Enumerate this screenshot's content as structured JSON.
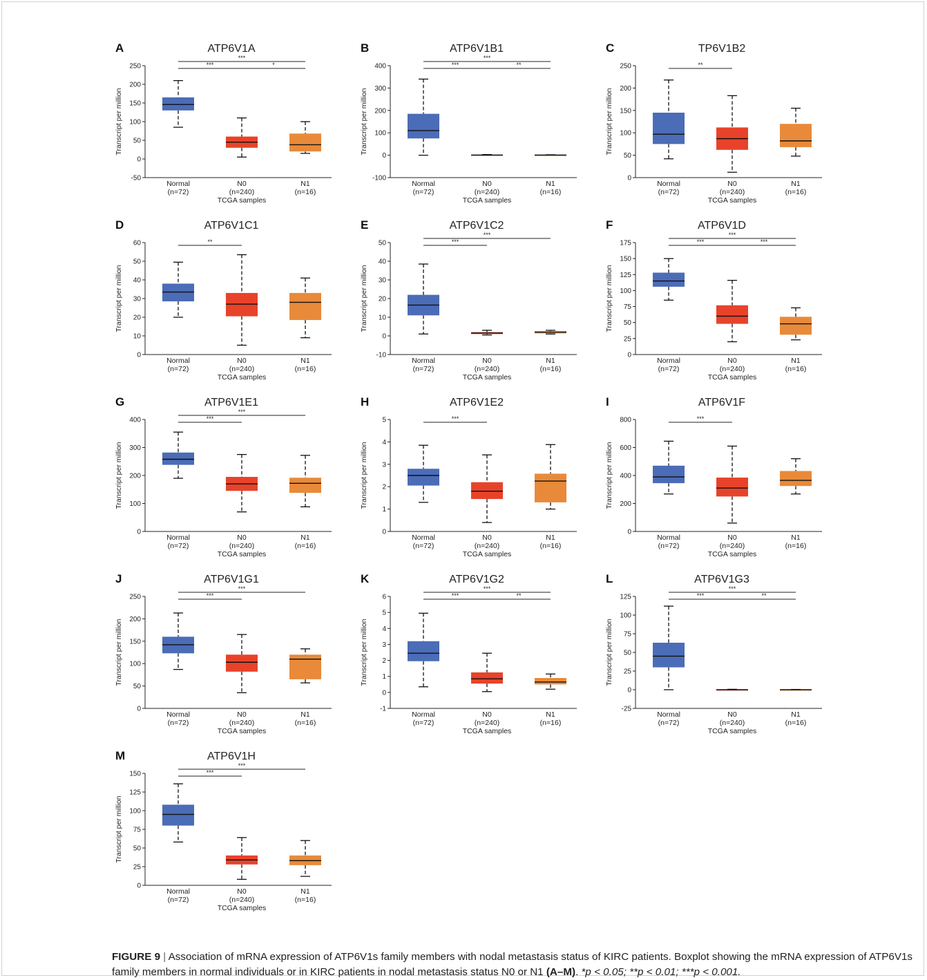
{
  "figure": {
    "caption": {
      "label": "FIGURE 9",
      "separator": "|",
      "text": "Association of mRNA expression of ATP6V1s family members with nodal metastasis status of KIRC patients. Boxplot showing the mRNA expression of ATP6V1s family members in normal individuals or in KIRC patients in nodal metastasis status N0 or N1",
      "panel_ref": "(A–M)",
      "sig_1": "*p < 0.05;",
      "sig_2": "**p < 0.01;",
      "sig_3": "***p < 0.001."
    }
  },
  "colors": {
    "Normal": "#4b6cb7",
    "N0": "#e8432a",
    "N1": "#e88a3a"
  },
  "chart_data": [
    {
      "type": "box",
      "panel": "A",
      "title": "ATP6V1A",
      "ylabel": "Transcript per million",
      "xlabel": "TCGA samples",
      "categories": [
        "Normal",
        "N0",
        "N1"
      ],
      "category_n": [
        "(n=72)",
        "(n=240)",
        "(n=16)"
      ],
      "ylim": [
        -50,
        250
      ],
      "yticks": [
        -50,
        0,
        50,
        100,
        150,
        200,
        250
      ],
      "boxes": [
        {
          "min": 85,
          "q1": 130,
          "median": 146,
          "q3": 165,
          "max": 210
        },
        {
          "min": 5,
          "q1": 30,
          "median": 45,
          "q3": 60,
          "max": 110
        },
        {
          "min": 15,
          "q1": 20,
          "median": 38,
          "q3": 68,
          "max": 100
        }
      ],
      "significance": [
        {
          "from": 0,
          "to": 1,
          "label": "***"
        },
        {
          "from": 0,
          "to": 2,
          "label": "***"
        },
        {
          "from": 1,
          "to": 2,
          "label": "*"
        }
      ]
    },
    {
      "type": "box",
      "panel": "B",
      "title": "ATP6V1B1",
      "ylabel": "Transcript per million",
      "xlabel": "TCGA samples",
      "categories": [
        "Normal",
        "N0",
        "N1"
      ],
      "category_n": [
        "(n=72)",
        "(n=240)",
        "(n=16)"
      ],
      "ylim": [
        -100,
        400
      ],
      "yticks": [
        -100,
        0,
        100,
        200,
        300,
        400
      ],
      "boxes": [
        {
          "min": 0,
          "q1": 75,
          "median": 110,
          "q3": 185,
          "max": 340
        },
        {
          "min": 0,
          "q1": 0,
          "median": 1,
          "q3": 2,
          "max": 3
        },
        {
          "min": 0,
          "q1": 0,
          "median": 1,
          "q3": 1,
          "max": 2
        }
      ],
      "significance": [
        {
          "from": 0,
          "to": 1,
          "label": "***"
        },
        {
          "from": 0,
          "to": 2,
          "label": "***"
        },
        {
          "from": 1,
          "to": 2,
          "label": "**"
        }
      ]
    },
    {
      "type": "box",
      "panel": "C",
      "title": "TP6V1B2",
      "ylabel": "Transcript per million",
      "xlabel": "TCGA samples",
      "categories": [
        "Normal",
        "N0",
        "N1"
      ],
      "category_n": [
        "(n=72)",
        "(n=240)",
        "(n=16)"
      ],
      "ylim": [
        0,
        250
      ],
      "yticks": [
        0,
        50,
        100,
        150,
        200,
        250
      ],
      "boxes": [
        {
          "min": 42,
          "q1": 75,
          "median": 97,
          "q3": 145,
          "max": 218
        },
        {
          "min": 12,
          "q1": 62,
          "median": 87,
          "q3": 112,
          "max": 183
        },
        {
          "min": 48,
          "q1": 68,
          "median": 82,
          "q3": 120,
          "max": 155
        }
      ],
      "significance": [
        {
          "from": 0,
          "to": 1,
          "label": "**"
        }
      ]
    },
    {
      "type": "box",
      "panel": "D",
      "title": "ATP6V1C1",
      "ylabel": "Transcript per million",
      "xlabel": "TCGA samples",
      "categories": [
        "Normal",
        "N0",
        "N1"
      ],
      "category_n": [
        "(n=72)",
        "(n=240)",
        "(n=16)"
      ],
      "ylim": [
        0,
        60
      ],
      "yticks": [
        0,
        10,
        20,
        30,
        40,
        50,
        60
      ],
      "boxes": [
        {
          "min": 20,
          "q1": 28.5,
          "median": 33.5,
          "q3": 38,
          "max": 49.5
        },
        {
          "min": 5,
          "q1": 20.5,
          "median": 27,
          "q3": 33,
          "max": 53.5
        },
        {
          "min": 9,
          "q1": 18.5,
          "median": 28,
          "q3": 33,
          "max": 41
        }
      ],
      "significance": [
        {
          "from": 0,
          "to": 1,
          "label": "**"
        }
      ]
    },
    {
      "type": "box",
      "panel": "E",
      "title": "ATP6V1C2",
      "ylabel": "Transcript per million",
      "xlabel": "TCGA samples",
      "categories": [
        "Normal",
        "N0",
        "N1"
      ],
      "category_n": [
        "(n=72)",
        "(n=240)",
        "(n=16)"
      ],
      "ylim": [
        -10,
        50
      ],
      "yticks": [
        -10,
        0,
        10,
        20,
        30,
        40,
        50
      ],
      "boxes": [
        {
          "min": 1,
          "q1": 11,
          "median": 16.5,
          "q3": 22,
          "max": 38.5
        },
        {
          "min": 0.5,
          "q1": 1,
          "median": 1.5,
          "q3": 2,
          "max": 3
        },
        {
          "min": 1,
          "q1": 1.3,
          "median": 2,
          "q3": 2.5,
          "max": 3
        }
      ],
      "significance": [
        {
          "from": 0,
          "to": 1,
          "label": "***"
        },
        {
          "from": 0,
          "to": 2,
          "label": "***"
        }
      ]
    },
    {
      "type": "box",
      "panel": "F",
      "title": "ATP6V1D",
      "ylabel": "Transcript per million",
      "xlabel": "TCGA samples",
      "categories": [
        "Normal",
        "N0",
        "N1"
      ],
      "category_n": [
        "(n=72)",
        "(n=240)",
        "(n=16)"
      ],
      "ylim": [
        0,
        175
      ],
      "yticks": [
        0,
        25,
        50,
        75,
        100,
        125,
        150,
        175
      ],
      "boxes": [
        {
          "min": 85,
          "q1": 106,
          "median": 115,
          "q3": 128,
          "max": 150
        },
        {
          "min": 20,
          "q1": 48,
          "median": 60,
          "q3": 77,
          "max": 116
        },
        {
          "min": 23,
          "q1": 31,
          "median": 48,
          "q3": 59,
          "max": 73
        }
      ],
      "significance": [
        {
          "from": 0,
          "to": 1,
          "label": "***"
        },
        {
          "from": 0,
          "to": 2,
          "label": "***"
        },
        {
          "from": 1,
          "to": 2,
          "label": "***"
        }
      ]
    },
    {
      "type": "box",
      "panel": "G",
      "title": "ATP6V1E1",
      "ylabel": "Transcript per million",
      "xlabel": "TCGA samples",
      "categories": [
        "Normal",
        "N0",
        "N1"
      ],
      "category_n": [
        "(n=72)",
        "(n=240)",
        "(n=16)"
      ],
      "ylim": [
        0,
        400
      ],
      "yticks": [
        0,
        100,
        200,
        300,
        400
      ],
      "boxes": [
        {
          "min": 190,
          "q1": 238,
          "median": 258,
          "q3": 282,
          "max": 355
        },
        {
          "min": 70,
          "q1": 145,
          "median": 170,
          "q3": 195,
          "max": 275
        },
        {
          "min": 88,
          "q1": 138,
          "median": 172,
          "q3": 192,
          "max": 272
        }
      ],
      "significance": [
        {
          "from": 0,
          "to": 1,
          "label": "***"
        },
        {
          "from": 0,
          "to": 2,
          "label": "***"
        }
      ]
    },
    {
      "type": "box",
      "panel": "H",
      "title": "ATP6V1E2",
      "ylabel": "Transcript per million",
      "xlabel": "TCGA samples",
      "categories": [
        "Normal",
        "N0",
        "N1"
      ],
      "category_n": [
        "(n=72)",
        "(n=240)",
        "(n=16)"
      ],
      "ylim": [
        0,
        5
      ],
      "yticks": [
        0,
        1,
        2,
        3,
        4,
        5
      ],
      "boxes": [
        {
          "min": 1.3,
          "q1": 2.05,
          "median": 2.5,
          "q3": 2.8,
          "max": 3.85
        },
        {
          "min": 0.4,
          "q1": 1.45,
          "median": 1.8,
          "q3": 2.2,
          "max": 3.42
        },
        {
          "min": 1,
          "q1": 1.3,
          "median": 2.25,
          "q3": 2.58,
          "max": 3.88
        }
      ],
      "significance": [
        {
          "from": 0,
          "to": 1,
          "label": "***"
        }
      ]
    },
    {
      "type": "box",
      "panel": "I",
      "title": "ATP6V1F",
      "ylabel": "Transcript per million",
      "xlabel": "TCGA samples",
      "categories": [
        "Normal",
        "N0",
        "N1"
      ],
      "category_n": [
        "(n=72)",
        "(n=240)",
        "(n=16)"
      ],
      "ylim": [
        0,
        800
      ],
      "yticks": [
        0,
        200,
        400,
        600,
        800
      ],
      "boxes": [
        {
          "min": 268,
          "q1": 345,
          "median": 390,
          "q3": 470,
          "max": 645
        },
        {
          "min": 60,
          "q1": 250,
          "median": 310,
          "q3": 385,
          "max": 610
        },
        {
          "min": 268,
          "q1": 325,
          "median": 365,
          "q3": 432,
          "max": 520
        }
      ],
      "significance": [
        {
          "from": 0,
          "to": 1,
          "label": "***"
        }
      ]
    },
    {
      "type": "box",
      "panel": "J",
      "title": "ATP6V1G1",
      "ylabel": "Transcript per million",
      "xlabel": "TCGA samples",
      "categories": [
        "Normal",
        "N0",
        "N1"
      ],
      "category_n": [
        "(n=72)",
        "(n=240)",
        "(n=16)"
      ],
      "ylim": [
        0,
        250
      ],
      "yticks": [
        0,
        50,
        100,
        150,
        200,
        250
      ],
      "boxes": [
        {
          "min": 87,
          "q1": 123,
          "median": 142,
          "q3": 160,
          "max": 213
        },
        {
          "min": 35,
          "q1": 82,
          "median": 103,
          "q3": 120,
          "max": 165
        },
        {
          "min": 57,
          "q1": 65,
          "median": 110,
          "q3": 120,
          "max": 133
        }
      ],
      "significance": [
        {
          "from": 0,
          "to": 1,
          "label": "***"
        },
        {
          "from": 0,
          "to": 2,
          "label": "***"
        }
      ]
    },
    {
      "type": "box",
      "panel": "K",
      "title": "ATP6V1G2",
      "ylabel": "Transcript per million",
      "xlabel": "TCGA samples",
      "categories": [
        "Normal",
        "N0",
        "N1"
      ],
      "category_n": [
        "(n=72)",
        "(n=240)",
        "(n=16)"
      ],
      "ylim": [
        -1,
        6
      ],
      "yticks": [
        -1,
        0,
        1,
        2,
        3,
        4,
        5,
        6
      ],
      "boxes": [
        {
          "min": 0.35,
          "q1": 1.95,
          "median": 2.45,
          "q3": 3.2,
          "max": 4.95
        },
        {
          "min": 0.05,
          "q1": 0.55,
          "median": 0.85,
          "q3": 1.25,
          "max": 2.45
        },
        {
          "min": 0.2,
          "q1": 0.5,
          "median": 0.65,
          "q3": 0.9,
          "max": 1.15
        }
      ],
      "significance": [
        {
          "from": 0,
          "to": 1,
          "label": "***"
        },
        {
          "from": 0,
          "to": 2,
          "label": "***"
        },
        {
          "from": 1,
          "to": 2,
          "label": "**"
        }
      ]
    },
    {
      "type": "box",
      "panel": "L",
      "title": "ATP6V1G3",
      "ylabel": "Transcript per million",
      "xlabel": "TCGA samples",
      "categories": [
        "Normal",
        "N0",
        "N1"
      ],
      "category_n": [
        "(n=72)",
        "(n=240)",
        "(n=16)"
      ],
      "ylim": [
        -25,
        125
      ],
      "yticks": [
        -25,
        0,
        25,
        50,
        75,
        100,
        125
      ],
      "boxes": [
        {
          "min": 0,
          "q1": 30,
          "median": 45,
          "q3": 63,
          "max": 112
        },
        {
          "min": 0,
          "q1": 0,
          "median": 0,
          "q3": 0.3,
          "max": 0.6
        },
        {
          "min": 0,
          "q1": 0,
          "median": 0,
          "q3": 0.2,
          "max": 0.4
        }
      ],
      "significance": [
        {
          "from": 0,
          "to": 1,
          "label": "***"
        },
        {
          "from": 0,
          "to": 2,
          "label": "***"
        },
        {
          "from": 1,
          "to": 2,
          "label": "**"
        }
      ]
    },
    {
      "type": "box",
      "panel": "M",
      "title": "ATP6V1H",
      "ylabel": "Transcript per million",
      "xlabel": "TCGA samples",
      "categories": [
        "Normal",
        "N0",
        "N1"
      ],
      "category_n": [
        "(n=72)",
        "(n=240)",
        "(n=16)"
      ],
      "ylim": [
        0,
        150
      ],
      "yticks": [
        0,
        25,
        50,
        75,
        100,
        125,
        150
      ],
      "boxes": [
        {
          "min": 58,
          "q1": 80,
          "median": 95,
          "q3": 108,
          "max": 136
        },
        {
          "min": 8,
          "q1": 28,
          "median": 34,
          "q3": 40,
          "max": 64
        },
        {
          "min": 12,
          "q1": 27,
          "median": 33,
          "q3": 40,
          "max": 60
        }
      ],
      "significance": [
        {
          "from": 0,
          "to": 1,
          "label": "***"
        },
        {
          "from": 0,
          "to": 2,
          "label": "***"
        }
      ]
    }
  ]
}
